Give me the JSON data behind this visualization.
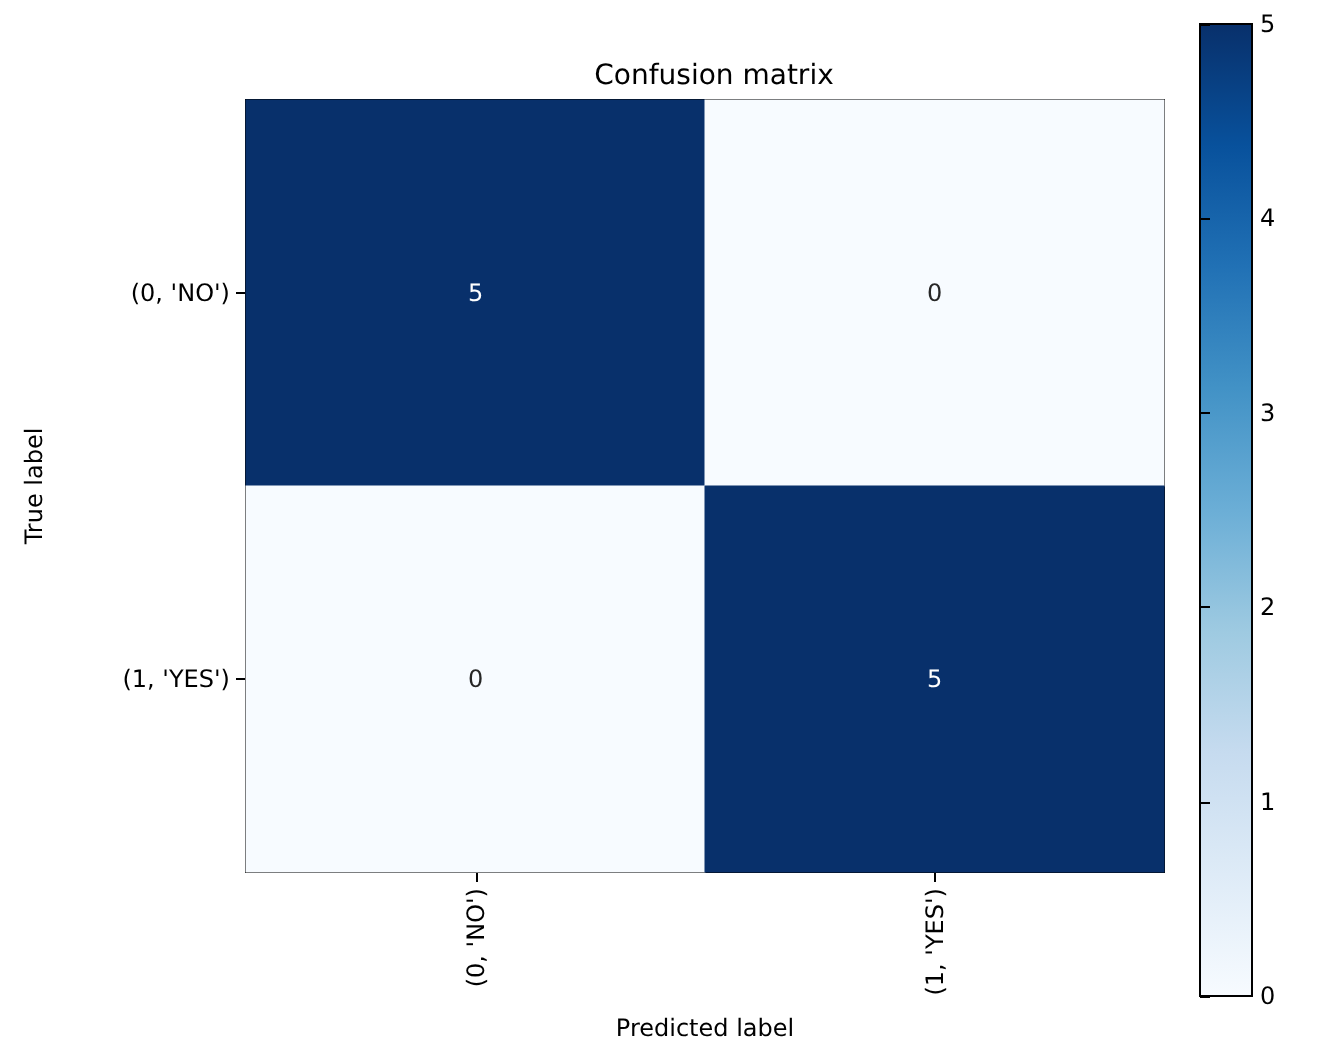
{
  "chart_data": {
    "type": "heatmap",
    "title": "Confusion matrix",
    "xlabel": "Predicted label",
    "ylabel": "True label",
    "categories": [
      "(0, 'NO')",
      "(1, 'YES')"
    ],
    "y_categories": [
      "(0, 'NO')",
      "(1, 'YES')"
    ],
    "cells": [
      [
        5,
        0
      ],
      [
        0,
        5
      ]
    ],
    "data_labels": true,
    "clim": [
      0,
      5
    ],
    "cticks": [
      0,
      1,
      2,
      3,
      4,
      5
    ]
  }
}
